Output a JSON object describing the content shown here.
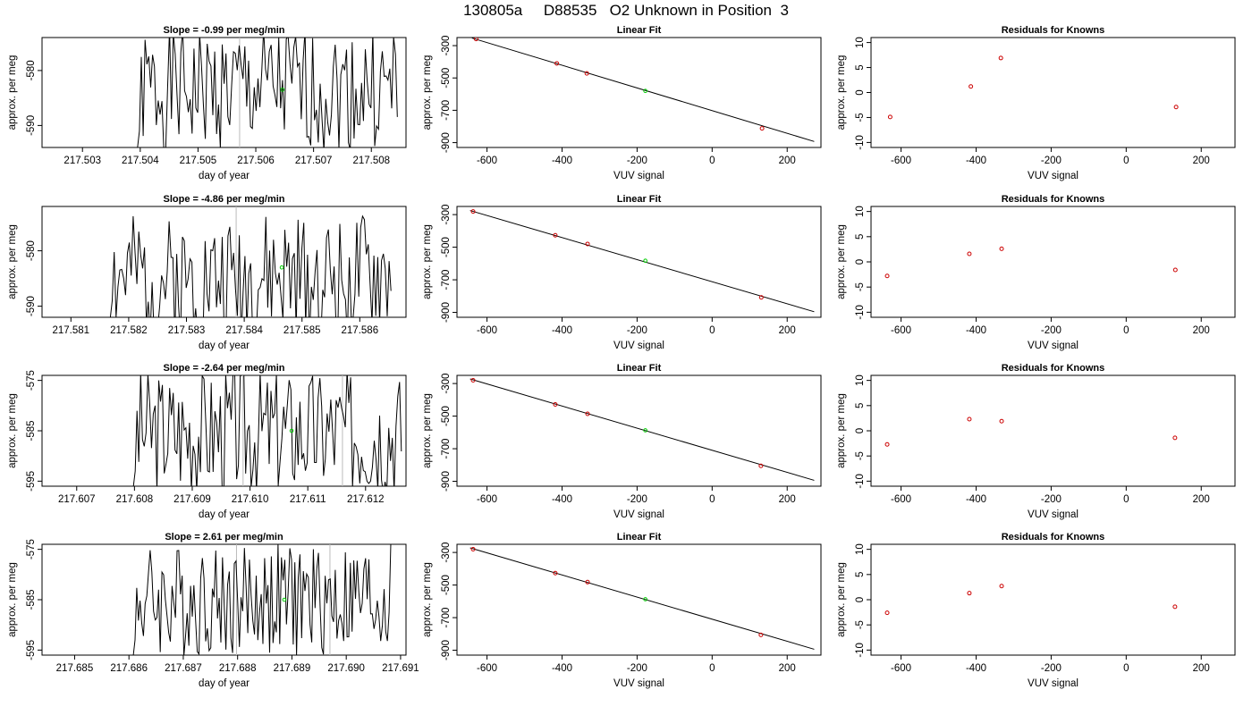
{
  "page_title": "130805a     D88535   O2 Unknown in Position  3",
  "colors": {
    "trace": "#000000",
    "fit_point": "#cc0000",
    "current_point": "#00cc00",
    "marker_line": "#bbbbbb",
    "fit_line": "#000000"
  },
  "chart_data": [
    {
      "type": "line",
      "panel": "slope",
      "row": 1,
      "title": "Slope =  -0.99  per meg/min",
      "xlabel": "day of year",
      "ylabel": "approx. per meg",
      "xlim": [
        217.5023,
        217.5086
      ],
      "ylim": [
        -594,
        -574
      ],
      "xticks": [
        217.503,
        217.504,
        217.505,
        217.506,
        217.507,
        217.508
      ],
      "xtick_labels": [
        "217.503",
        "217.504",
        "217.505",
        "217.506",
        "217.507",
        "217.508"
      ],
      "yticks": [
        -580,
        -590
      ],
      "ytick_labels": [
        "-580",
        "-590"
      ],
      "trace_x_range": [
        217.50392,
        217.50845
      ],
      "trace_n": 140,
      "trace_center": -583.5,
      "trace_amp": 9,
      "markers_x": [
        217.50572
      ],
      "current_point": {
        "x": 217.50646,
        "y": -583.5
      }
    },
    {
      "type": "scatter",
      "panel": "fit",
      "row": 1,
      "title": "Linear Fit",
      "xlabel": "VUV signal",
      "ylabel": "approx. per meg",
      "xlim": [
        -680,
        290
      ],
      "ylim": [
        -930,
        -250
      ],
      "xticks": [
        -600,
        -400,
        -200,
        0,
        200
      ],
      "xtick_labels": [
        "-600",
        "-400",
        "-200",
        "0",
        "200"
      ],
      "yticks": [
        -300,
        -500,
        -700,
        -900
      ],
      "ytick_labels": [
        "-300",
        "-500",
        "-700",
        "-900"
      ],
      "knowns": [
        {
          "x": -629,
          "y": -259
        },
        {
          "x": -414,
          "y": -410
        },
        {
          "x": -334,
          "y": -472
        },
        {
          "x": 133,
          "y": -812
        }
      ],
      "unknown": {
        "x": -178,
        "y": -580
      },
      "fit_line": {
        "x1": -640,
        "y1": -253,
        "x2": 272,
        "y2": -893
      }
    },
    {
      "type": "scatter",
      "panel": "residuals",
      "row": 1,
      "title": "Residuals for Knowns",
      "xlabel": "VUV signal",
      "ylabel": "approx. per meg",
      "xlim": [
        -680,
        290
      ],
      "ylim": [
        -11,
        11
      ],
      "xticks": [
        -600,
        -400,
        -200,
        0,
        200
      ],
      "xtick_labels": [
        "-600",
        "-400",
        "-200",
        "0",
        "200"
      ],
      "yticks": [
        10,
        5,
        0,
        -5,
        -10
      ],
      "ytick_labels": [
        "10",
        "5",
        "0",
        "-5",
        "-10"
      ],
      "points": [
        {
          "x": -629,
          "y": -4.9
        },
        {
          "x": -414,
          "y": 1.2
        },
        {
          "x": -334,
          "y": 6.9
        },
        {
          "x": 133,
          "y": -2.9
        }
      ]
    },
    {
      "type": "line",
      "panel": "slope",
      "row": 2,
      "title": "Slope =  -4.86  per meg/min",
      "xlabel": "day of year",
      "ylabel": "approx. per meg",
      "xlim": [
        217.5805,
        217.5868
      ],
      "ylim": [
        -592,
        -572
      ],
      "xticks": [
        217.581,
        217.582,
        217.583,
        217.584,
        217.585,
        217.586
      ],
      "xtick_labels": [
        "217.581",
        "217.582",
        "217.583",
        "217.584",
        "217.585",
        "217.586"
      ],
      "yticks": [
        -580,
        -590
      ],
      "ytick_labels": [
        "-580",
        "-590"
      ],
      "trace_x_range": [
        217.58165,
        217.58654
      ],
      "trace_n": 150,
      "trace_center": -585,
      "trace_amp": 9,
      "markers_x": [
        217.58386
      ],
      "current_point": {
        "x": 217.58465,
        "y": -583
      }
    },
    {
      "type": "scatter",
      "panel": "fit",
      "row": 2,
      "title": "Linear Fit",
      "xlabel": "VUV signal",
      "ylabel": "approx. per meg",
      "xlim": [
        -680,
        290
      ],
      "ylim": [
        -930,
        -250
      ],
      "xticks": [
        -600,
        -400,
        -200,
        0,
        200
      ],
      "xtick_labels": [
        "-600",
        "-400",
        "-200",
        "0",
        "200"
      ],
      "yticks": [
        -300,
        -500,
        -700,
        -900
      ],
      "ytick_labels": [
        "-300",
        "-500",
        "-700",
        "-900"
      ],
      "knowns": [
        {
          "x": -637,
          "y": -281
        },
        {
          "x": -418,
          "y": -427
        },
        {
          "x": -332,
          "y": -480
        },
        {
          "x": 131,
          "y": -808
        }
      ],
      "unknown": {
        "x": -178,
        "y": -583
      },
      "fit_line": {
        "x1": -645,
        "y1": -275,
        "x2": 272,
        "y2": -896
      }
    },
    {
      "type": "scatter",
      "panel": "residuals",
      "row": 2,
      "title": "Residuals for Knowns",
      "xlabel": "VUV signal",
      "ylabel": "approx. per meg",
      "xlim": [
        -680,
        290
      ],
      "ylim": [
        -11,
        11
      ],
      "xticks": [
        -600,
        -400,
        -200,
        0,
        200
      ],
      "xtick_labels": [
        "-600",
        "-400",
        "-200",
        "0",
        "200"
      ],
      "yticks": [
        10,
        5,
        0,
        -5,
        -10
      ],
      "ytick_labels": [
        "10",
        "5",
        "0",
        "-5",
        "-10"
      ],
      "points": [
        {
          "x": -637,
          "y": -2.8
        },
        {
          "x": -418,
          "y": 1.6
        },
        {
          "x": -332,
          "y": 2.6
        },
        {
          "x": 131,
          "y": -1.6
        }
      ]
    },
    {
      "type": "line",
      "panel": "slope",
      "row": 3,
      "title": "Slope =  -2.64  per meg/min",
      "xlabel": "day of year",
      "ylabel": "approx. per meg",
      "xlim": [
        217.6064,
        217.6127
      ],
      "ylim": [
        -596,
        -574
      ],
      "xticks": [
        217.607,
        217.608,
        217.609,
        217.61,
        217.611,
        217.612
      ],
      "xtick_labels": [
        "217.607",
        "217.608",
        "217.609",
        "217.610",
        "217.611",
        "217.612"
      ],
      "yticks": [
        -575,
        -585,
        -595
      ],
      "ytick_labels": [
        "-575",
        "-585",
        "-595"
      ],
      "trace_x_range": [
        217.60795,
        217.61262
      ],
      "trace_n": 150,
      "trace_center": -585,
      "trace_amp": 10,
      "markers_x": [
        217.60988,
        217.6116
      ],
      "current_point": {
        "x": 217.61072,
        "y": -585
      }
    },
    {
      "type": "scatter",
      "panel": "fit",
      "row": 3,
      "title": "Linear Fit",
      "xlabel": "VUV signal",
      "ylabel": "approx. per meg",
      "xlim": [
        -680,
        290
      ],
      "ylim": [
        -930,
        -250
      ],
      "xticks": [
        -600,
        -400,
        -200,
        0,
        200
      ],
      "xtick_labels": [
        "-600",
        "-400",
        "-200",
        "0",
        "200"
      ],
      "yticks": [
        -300,
        -500,
        -700,
        -900
      ],
      "ytick_labels": [
        "-300",
        "-500",
        "-700",
        "-900"
      ],
      "knowns": [
        {
          "x": -637,
          "y": -280
        },
        {
          "x": -418,
          "y": -428
        },
        {
          "x": -332,
          "y": -486
        },
        {
          "x": 130,
          "y": -805
        }
      ],
      "unknown": {
        "x": -178,
        "y": -587
      },
      "fit_line": {
        "x1": -645,
        "y1": -272,
        "x2": 272,
        "y2": -894
      }
    },
    {
      "type": "scatter",
      "panel": "residuals",
      "row": 3,
      "title": "Residuals for Knowns",
      "xlabel": "VUV signal",
      "ylabel": "approx. per meg",
      "xlim": [
        -680,
        290
      ],
      "ylim": [
        -11,
        11
      ],
      "xticks": [
        -600,
        -400,
        -200,
        0,
        200
      ],
      "xtick_labels": [
        "-600",
        "-400",
        "-200",
        "0",
        "200"
      ],
      "yticks": [
        10,
        5,
        0,
        -5,
        -10
      ],
      "ytick_labels": [
        "10",
        "5",
        "0",
        "-5",
        "-10"
      ],
      "points": [
        {
          "x": -637,
          "y": -2.7
        },
        {
          "x": -418,
          "y": 2.3
        },
        {
          "x": -332,
          "y": 1.9
        },
        {
          "x": 130,
          "y": -1.4
        }
      ]
    },
    {
      "type": "line",
      "panel": "slope",
      "row": 4,
      "title": "Slope =  2.61  per meg/min",
      "xlabel": "day of year",
      "ylabel": "approx. per meg",
      "xlim": [
        217.6844,
        217.6911
      ],
      "ylim": [
        -596,
        -574
      ],
      "xticks": [
        217.685,
        217.686,
        217.687,
        217.688,
        217.689,
        217.69,
        217.691
      ],
      "xtick_labels": [
        "217.685",
        "217.686",
        "217.687",
        "217.688",
        "217.689",
        "217.690",
        "217.691"
      ],
      "yticks": [
        -575,
        -585,
        -595
      ],
      "ytick_labels": [
        "-575",
        "-585",
        "-595"
      ],
      "trace_x_range": [
        217.68605,
        217.69082
      ],
      "trace_n": 155,
      "trace_center": -585,
      "trace_amp": 9,
      "markers_x": [
        217.68798,
        217.6897
      ],
      "current_point": {
        "x": 217.68886,
        "y": -585
      }
    },
    {
      "type": "scatter",
      "panel": "fit",
      "row": 4,
      "title": "Linear Fit",
      "xlabel": "VUV signal",
      "ylabel": "approx. per meg",
      "xlim": [
        -680,
        290
      ],
      "ylim": [
        -930,
        -250
      ],
      "xticks": [
        -600,
        -400,
        -200,
        0,
        200
      ],
      "xtick_labels": [
        "-600",
        "-400",
        "-200",
        "0",
        "200"
      ],
      "yticks": [
        -300,
        -500,
        -700,
        -900
      ],
      "ytick_labels": [
        "-300",
        "-500",
        "-700",
        "-900"
      ],
      "knowns": [
        {
          "x": -637,
          "y": -280
        },
        {
          "x": -418,
          "y": -427
        },
        {
          "x": -332,
          "y": -482
        },
        {
          "x": 130,
          "y": -806
        }
      ],
      "unknown": {
        "x": -178,
        "y": -587
      },
      "fit_line": {
        "x1": -645,
        "y1": -272,
        "x2": 272,
        "y2": -894
      }
    },
    {
      "type": "scatter",
      "panel": "residuals",
      "row": 4,
      "title": "Residuals for Knowns",
      "xlabel": "VUV signal",
      "ylabel": "approx. per meg",
      "xlim": [
        -680,
        290
      ],
      "ylim": [
        -11,
        11
      ],
      "xticks": [
        -600,
        -400,
        -200,
        0,
        200
      ],
      "xtick_labels": [
        "-600",
        "-400",
        "-200",
        "0",
        "200"
      ],
      "yticks": [
        10,
        5,
        0,
        -5,
        -10
      ],
      "ytick_labels": [
        "10",
        "5",
        "0",
        "-5",
        "-10"
      ],
      "points": [
        {
          "x": -637,
          "y": -2.6
        },
        {
          "x": -418,
          "y": 1.3
        },
        {
          "x": -332,
          "y": 2.7
        },
        {
          "x": 130,
          "y": -1.4
        }
      ]
    }
  ]
}
